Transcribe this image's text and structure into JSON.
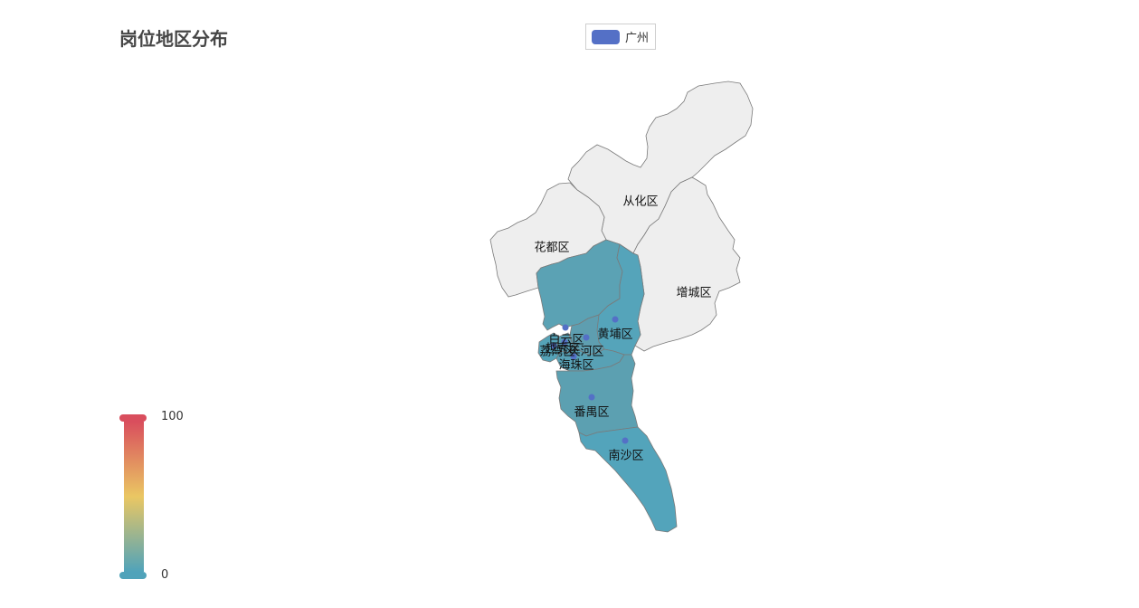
{
  "title": "岗位地区分布",
  "legend": {
    "label": "广州",
    "color": "#5470c6"
  },
  "visual_map": {
    "min": 0,
    "max": 100,
    "min_label": "0",
    "max_label": "100",
    "colors": [
      "#50a3ba",
      "#eac763",
      "#d94e5d"
    ],
    "handle_min_color": "#50a3ba",
    "handle_max_color": "#d94e5d"
  },
  "map": {
    "name": "广州",
    "no_data_color": "#eeeeee",
    "point_color": "#5470c6",
    "districts": [
      {
        "name": "从化区",
        "label": "从化区",
        "color": "#eeeeee",
        "point": false
      },
      {
        "name": "花都区",
        "label": "花都区",
        "color": "#eeeeee",
        "point": false
      },
      {
        "name": "增城区",
        "label": "增城区",
        "color": "#eeeeee",
        "point": false
      },
      {
        "name": "白云区",
        "label": "白云区",
        "color": "#5ba2b4",
        "point": true
      },
      {
        "name": "黄埔区",
        "label": "黄埔区",
        "color": "#55a4ba",
        "point": true
      },
      {
        "name": "天河区",
        "label": "天河区",
        "color": "#5e9eb0",
        "point": true
      },
      {
        "name": "越秀区",
        "label": "越秀区",
        "color": "#5aa0b4",
        "point": true
      },
      {
        "name": "荔湾区",
        "label": "荔湾区",
        "color": "#55a3b8",
        "point": true
      },
      {
        "name": "海珠区",
        "label": "海珠区",
        "color": "#58a1b5",
        "point": true
      },
      {
        "name": "番禺区",
        "label": "番禺区",
        "color": "#5ca0b1",
        "point": true
      },
      {
        "name": "南沙区",
        "label": "南沙区",
        "color": "#53a4bb",
        "point": true
      }
    ]
  }
}
